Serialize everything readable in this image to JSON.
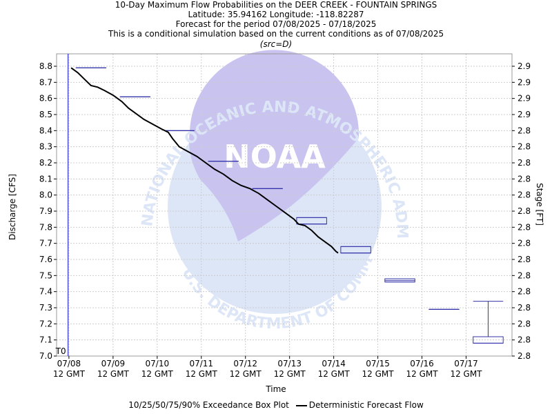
{
  "header": {
    "title": "10-Day Maximum Flow Probabilities on the DEER CREEK - FOUNTAIN SPRINGS",
    "location": "Latitude: 35.94162 Longitude: -118.82287",
    "period": "Forecast for the period 07/08/2025 - 07/18/2025",
    "condition": "This is a conditional simulation based on the current conditions as of 07/08/2025",
    "source": "(src=D)"
  },
  "legend": {
    "boxplot_label": "10/25/50/75/90% Exceedance Box Plot",
    "line_label": "Deterministic Forecast Flow"
  },
  "watermark": {
    "logo_text": "NOAA",
    "ring_text_top": "NATIONAL OCEANIC AND ATMOSPHERIC ADMINISTRATION",
    "ring_text_bottom": "U.S. DEPARTMENT OF COMMERCE"
  },
  "colors": {
    "forecast_line": "#000000",
    "boxplot": "#3333aa",
    "t0_line": "#3333cc",
    "grid": "#cccccc",
    "watermark": "#dde6f7",
    "watermark_dark": "#c9c3f0"
  },
  "chart_data": {
    "type": "line",
    "xlabel": "Time",
    "ylabel_left": "Discharge [CFS]",
    "ylabel_right": "Stage [FT]",
    "ylim": [
      7.0,
      8.8
    ],
    "y_ticks": [
      7.0,
      7.1,
      7.2,
      7.3,
      7.4,
      7.5,
      7.6,
      7.7,
      7.8,
      7.9,
      8.0,
      8.1,
      8.2,
      8.3,
      8.4,
      8.5,
      8.6,
      8.7,
      8.8
    ],
    "y_right_ticks": [
      "2.8",
      "2.8",
      "2.8",
      "2.8",
      "2.8",
      "2.8",
      "2.8",
      "2.8",
      "2.8",
      "2.8",
      "2.8",
      "2.8",
      "2.8",
      "2.8",
      "2.8",
      "2.9",
      "2.9",
      "2.9",
      "2.9"
    ],
    "xlim": [
      -0.28,
      10.04
    ],
    "x_ticks": [
      {
        "pos": 0,
        "date": "07/08",
        "time": "12 GMT"
      },
      {
        "pos": 1,
        "date": "07/09",
        "time": "12 GMT"
      },
      {
        "pos": 2,
        "date": "07/10",
        "time": "12 GMT"
      },
      {
        "pos": 3,
        "date": "07/11",
        "time": "12 GMT"
      },
      {
        "pos": 4,
        "date": "07/12",
        "time": "12 GMT"
      },
      {
        "pos": 5,
        "date": "07/13",
        "time": "12 GMT"
      },
      {
        "pos": 6,
        "date": "07/14",
        "time": "12 GMT"
      },
      {
        "pos": 7,
        "date": "07/15",
        "time": "12 GMT"
      },
      {
        "pos": 8,
        "date": "07/16",
        "time": "12 GMT"
      },
      {
        "pos": 9,
        "date": "07/17",
        "time": "12 GMT"
      }
    ],
    "t0": {
      "x": -0.02,
      "label": "T0"
    },
    "grid": true,
    "series": [
      {
        "name": "Deterministic Forecast Flow",
        "points": [
          [
            0.05,
            8.79
          ],
          [
            0.2,
            8.76
          ],
          [
            0.35,
            8.72
          ],
          [
            0.5,
            8.68
          ],
          [
            0.65,
            8.67
          ],
          [
            0.8,
            8.65
          ],
          [
            1.0,
            8.62
          ],
          [
            1.2,
            8.58
          ],
          [
            1.35,
            8.54
          ],
          [
            1.5,
            8.51
          ],
          [
            1.7,
            8.47
          ],
          [
            1.9,
            8.44
          ],
          [
            2.1,
            8.41
          ],
          [
            2.25,
            8.39
          ],
          [
            2.35,
            8.35
          ],
          [
            2.5,
            8.3
          ],
          [
            2.7,
            8.27
          ],
          [
            2.9,
            8.24
          ],
          [
            3.1,
            8.2
          ],
          [
            3.3,
            8.16
          ],
          [
            3.5,
            8.13
          ],
          [
            3.7,
            8.09
          ],
          [
            3.9,
            8.06
          ],
          [
            4.1,
            8.04
          ],
          [
            4.3,
            8.01
          ],
          [
            4.5,
            7.97
          ],
          [
            4.7,
            7.93
          ],
          [
            4.9,
            7.89
          ],
          [
            5.1,
            7.85
          ],
          [
            5.2,
            7.82
          ],
          [
            5.35,
            7.81
          ],
          [
            5.5,
            7.78
          ],
          [
            5.65,
            7.74
          ],
          [
            5.8,
            7.71
          ],
          [
            5.95,
            7.68
          ],
          [
            6.05,
            7.65
          ],
          [
            6.1,
            7.64
          ]
        ]
      }
    ],
    "boxplots": [
      {
        "x": 0.5,
        "p10": 8.79,
        "p25": 8.79,
        "p50": 8.79,
        "p75": 8.79,
        "p90": 8.79
      },
      {
        "x": 1.5,
        "p10": 8.61,
        "p25": 8.61,
        "p50": 8.61,
        "p75": 8.61,
        "p90": 8.61
      },
      {
        "x": 2.5,
        "p10": 8.4,
        "p25": 8.4,
        "p50": 8.4,
        "p75": 8.4,
        "p90": 8.4
      },
      {
        "x": 3.5,
        "p10": 8.21,
        "p25": 8.21,
        "p50": 8.21,
        "p75": 8.21,
        "p90": 8.21
      },
      {
        "x": 4.5,
        "p10": 8.04,
        "p25": 8.04,
        "p50": 8.04,
        "p75": 8.04,
        "p90": 8.04
      },
      {
        "x": 5.5,
        "p10": 7.82,
        "p25": 7.82,
        "p50": 7.82,
        "p75": 7.86,
        "p90": 7.86
      },
      {
        "x": 6.5,
        "p10": 7.64,
        "p25": 7.64,
        "p50": 7.64,
        "p75": 7.68,
        "p90": 7.68
      },
      {
        "x": 7.5,
        "p10": 7.46,
        "p25": 7.46,
        "p50": 7.47,
        "p75": 7.48,
        "p90": 7.48
      },
      {
        "x": 8.5,
        "p10": 7.29,
        "p25": 7.29,
        "p50": 7.29,
        "p75": 7.29,
        "p90": 7.29
      },
      {
        "x": 9.5,
        "p10": 7.08,
        "p25": 7.08,
        "p50": 7.12,
        "p75": 7.12,
        "p90": 7.34
      }
    ]
  }
}
